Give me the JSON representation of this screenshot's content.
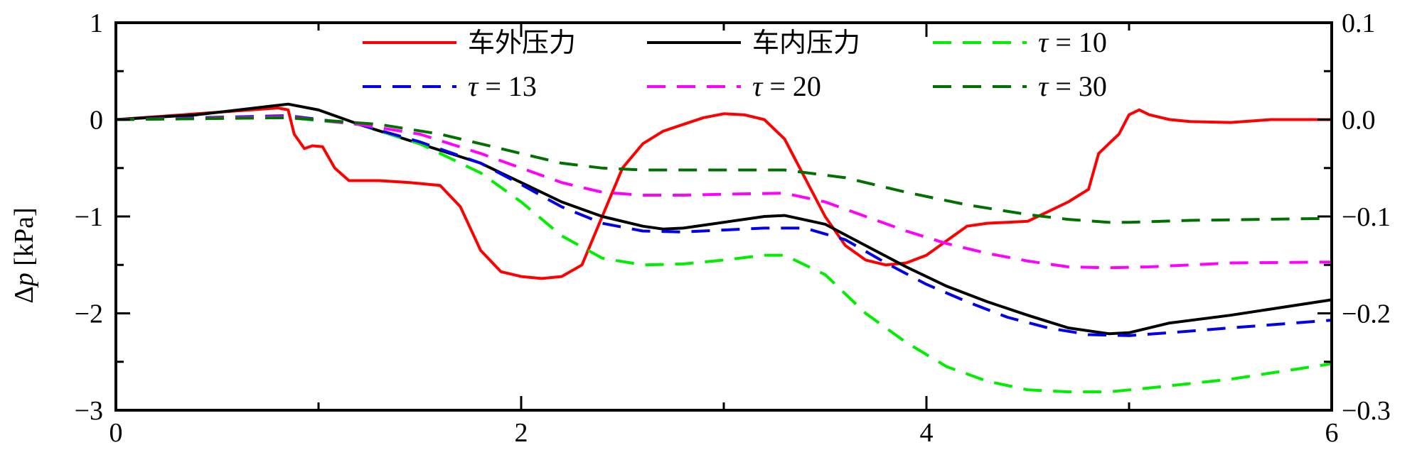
{
  "chart_data": {
    "type": "line",
    "title": "",
    "xlabel": "",
    "ylabel": "Δp [kPa]",
    "ylabel_parts": {
      "delta": "Δ",
      "p": "p",
      "unit": " [kPa]"
    },
    "xlim": [
      0,
      6
    ],
    "ylim": [
      -3,
      1
    ],
    "y2lim": [
      -0.3,
      0.1
    ],
    "x_ticks": [
      {
        "value": 0,
        "label": "0"
      },
      {
        "value": 2,
        "label": "2"
      },
      {
        "value": 4,
        "label": "4"
      },
      {
        "value": 6,
        "label": "6"
      }
    ],
    "y_ticks": [
      {
        "value": 1,
        "label": "1"
      },
      {
        "value": 0,
        "label": "0"
      },
      {
        "value": -1,
        "label": "−1"
      },
      {
        "value": -2,
        "label": "−2"
      },
      {
        "value": -3,
        "label": "−3"
      }
    ],
    "y2_ticks": [
      {
        "value": 0.1,
        "label": "0.1"
      },
      {
        "value": 0.0,
        "label": "0.0"
      },
      {
        "value": -0.1,
        "label": "−0.1"
      },
      {
        "value": -0.2,
        "label": "−0.2"
      },
      {
        "value": -0.3,
        "label": "−0.3"
      }
    ],
    "x_minor_ticks": [
      1,
      3,
      5
    ],
    "y_minor_ticks": [
      0.5,
      -0.5,
      -1.5,
      -2.5
    ],
    "grid": false,
    "legend_position": "top-center",
    "series": [
      {
        "name": "车外压力",
        "axis": "left",
        "color": "#ff0000",
        "dash": "solid",
        "points": [
          [
            0,
            0
          ],
          [
            0.4,
            0.06
          ],
          [
            0.8,
            0.12
          ],
          [
            0.85,
            0.1
          ],
          [
            0.88,
            -0.15
          ],
          [
            0.93,
            -0.3
          ],
          [
            0.97,
            -0.27
          ],
          [
            1.02,
            -0.28
          ],
          [
            1.08,
            -0.5
          ],
          [
            1.15,
            -0.63
          ],
          [
            1.3,
            -0.63
          ],
          [
            1.45,
            -0.65
          ],
          [
            1.6,
            -0.68
          ],
          [
            1.7,
            -0.9
          ],
          [
            1.8,
            -1.35
          ],
          [
            1.9,
            -1.57
          ],
          [
            2.0,
            -1.62
          ],
          [
            2.1,
            -1.64
          ],
          [
            2.2,
            -1.62
          ],
          [
            2.3,
            -1.5
          ],
          [
            2.4,
            -1.0
          ],
          [
            2.5,
            -0.5
          ],
          [
            2.6,
            -0.25
          ],
          [
            2.7,
            -0.12
          ],
          [
            2.8,
            -0.05
          ],
          [
            2.9,
            0.02
          ],
          [
            3.0,
            0.06
          ],
          [
            3.1,
            0.05
          ],
          [
            3.2,
            0.0
          ],
          [
            3.3,
            -0.2
          ],
          [
            3.4,
            -0.6
          ],
          [
            3.5,
            -1.0
          ],
          [
            3.6,
            -1.3
          ],
          [
            3.7,
            -1.45
          ],
          [
            3.8,
            -1.5
          ],
          [
            3.9,
            -1.48
          ],
          [
            4.0,
            -1.4
          ],
          [
            4.1,
            -1.25
          ],
          [
            4.2,
            -1.1
          ],
          [
            4.3,
            -1.07
          ],
          [
            4.4,
            -1.06
          ],
          [
            4.5,
            -1.05
          ],
          [
            4.6,
            -0.95
          ],
          [
            4.7,
            -0.85
          ],
          [
            4.8,
            -0.72
          ],
          [
            4.85,
            -0.35
          ],
          [
            4.9,
            -0.25
          ],
          [
            4.95,
            -0.15
          ],
          [
            5.0,
            0.05
          ],
          [
            5.05,
            0.1
          ],
          [
            5.1,
            0.05
          ],
          [
            5.2,
            0.0
          ],
          [
            5.3,
            -0.02
          ],
          [
            5.5,
            -0.03
          ],
          [
            5.7,
            0.0
          ],
          [
            6.0,
            0.0
          ]
        ]
      },
      {
        "name": "车内压力",
        "axis": "right",
        "color": "#000000",
        "dash": "solid",
        "points": [
          [
            0,
            0.0
          ],
          [
            0.4,
            0.005
          ],
          [
            0.85,
            0.016
          ],
          [
            1.0,
            0.01
          ],
          [
            1.2,
            -0.005
          ],
          [
            1.5,
            -0.025
          ],
          [
            1.8,
            -0.045
          ],
          [
            2.0,
            -0.065
          ],
          [
            2.2,
            -0.085
          ],
          [
            2.4,
            -0.1
          ],
          [
            2.6,
            -0.11
          ],
          [
            2.7,
            -0.113
          ],
          [
            2.8,
            -0.112
          ],
          [
            3.0,
            -0.106
          ],
          [
            3.2,
            -0.1
          ],
          [
            3.3,
            -0.099
          ],
          [
            3.5,
            -0.108
          ],
          [
            3.7,
            -0.13
          ],
          [
            3.9,
            -0.152
          ],
          [
            4.1,
            -0.172
          ],
          [
            4.3,
            -0.188
          ],
          [
            4.5,
            -0.202
          ],
          [
            4.7,
            -0.215
          ],
          [
            4.9,
            -0.221
          ],
          [
            5.0,
            -0.22
          ],
          [
            5.2,
            -0.21
          ],
          [
            5.5,
            -0.202
          ],
          [
            6.0,
            -0.186
          ]
        ]
      },
      {
        "name": "τ = 10",
        "axis": "right",
        "color": "#00ee00",
        "dash": "dashed",
        "points": [
          [
            0,
            0.0
          ],
          [
            0.85,
            0.002
          ],
          [
            1.2,
            -0.005
          ],
          [
            1.5,
            -0.025
          ],
          [
            1.8,
            -0.055
          ],
          [
            2.0,
            -0.085
          ],
          [
            2.2,
            -0.12
          ],
          [
            2.4,
            -0.143
          ],
          [
            2.6,
            -0.15
          ],
          [
            2.8,
            -0.149
          ],
          [
            3.0,
            -0.145
          ],
          [
            3.2,
            -0.14
          ],
          [
            3.3,
            -0.14
          ],
          [
            3.5,
            -0.16
          ],
          [
            3.7,
            -0.2
          ],
          [
            3.9,
            -0.23
          ],
          [
            4.1,
            -0.255
          ],
          [
            4.3,
            -0.27
          ],
          [
            4.5,
            -0.279
          ],
          [
            4.7,
            -0.281
          ],
          [
            4.9,
            -0.281
          ],
          [
            5.1,
            -0.277
          ],
          [
            5.5,
            -0.268
          ],
          [
            6.0,
            -0.252
          ]
        ]
      },
      {
        "name": "τ = 13",
        "axis": "right",
        "color": "#0000ee",
        "dash": "dashed",
        "points": [
          [
            0,
            0.0
          ],
          [
            0.85,
            0.004
          ],
          [
            1.2,
            -0.005
          ],
          [
            1.5,
            -0.023
          ],
          [
            1.8,
            -0.045
          ],
          [
            2.0,
            -0.067
          ],
          [
            2.2,
            -0.09
          ],
          [
            2.4,
            -0.107
          ],
          [
            2.6,
            -0.115
          ],
          [
            2.8,
            -0.116
          ],
          [
            3.0,
            -0.114
          ],
          [
            3.2,
            -0.112
          ],
          [
            3.4,
            -0.112
          ],
          [
            3.6,
            -0.124
          ],
          [
            3.8,
            -0.148
          ],
          [
            4.0,
            -0.17
          ],
          [
            4.2,
            -0.188
          ],
          [
            4.4,
            -0.204
          ],
          [
            4.6,
            -0.215
          ],
          [
            4.8,
            -0.222
          ],
          [
            5.0,
            -0.223
          ],
          [
            5.2,
            -0.22
          ],
          [
            5.5,
            -0.215
          ],
          [
            6.0,
            -0.207
          ]
        ]
      },
      {
        "name": "τ = 20",
        "axis": "right",
        "color": "#ff00ff",
        "dash": "dashed",
        "points": [
          [
            0,
            0.0
          ],
          [
            0.85,
            0.003
          ],
          [
            1.2,
            -0.005
          ],
          [
            1.5,
            -0.015
          ],
          [
            1.8,
            -0.035
          ],
          [
            2.0,
            -0.05
          ],
          [
            2.2,
            -0.065
          ],
          [
            2.4,
            -0.075
          ],
          [
            2.6,
            -0.078
          ],
          [
            2.8,
            -0.078
          ],
          [
            3.0,
            -0.077
          ],
          [
            3.3,
            -0.076
          ],
          [
            3.5,
            -0.085
          ],
          [
            3.7,
            -0.1
          ],
          [
            3.9,
            -0.115
          ],
          [
            4.1,
            -0.128
          ],
          [
            4.3,
            -0.138
          ],
          [
            4.5,
            -0.146
          ],
          [
            4.7,
            -0.152
          ],
          [
            4.9,
            -0.153
          ],
          [
            5.1,
            -0.152
          ],
          [
            5.5,
            -0.148
          ],
          [
            6.0,
            -0.147
          ]
        ]
      },
      {
        "name": "τ = 30",
        "axis": "right",
        "color": "#007000",
        "dash": "dashed",
        "points": [
          [
            0,
            0.0
          ],
          [
            0.85,
            0.002
          ],
          [
            1.3,
            -0.005
          ],
          [
            1.6,
            -0.015
          ],
          [
            1.8,
            -0.025
          ],
          [
            2.0,
            -0.035
          ],
          [
            2.2,
            -0.045
          ],
          [
            2.4,
            -0.05
          ],
          [
            2.6,
            -0.052
          ],
          [
            3.0,
            -0.052
          ],
          [
            3.3,
            -0.052
          ],
          [
            3.6,
            -0.06
          ],
          [
            3.9,
            -0.075
          ],
          [
            4.2,
            -0.088
          ],
          [
            4.5,
            -0.098
          ],
          [
            4.7,
            -0.103
          ],
          [
            4.9,
            -0.106
          ],
          [
            5.0,
            -0.106
          ],
          [
            5.3,
            -0.104
          ],
          [
            6.0,
            -0.102
          ]
        ]
      }
    ]
  }
}
